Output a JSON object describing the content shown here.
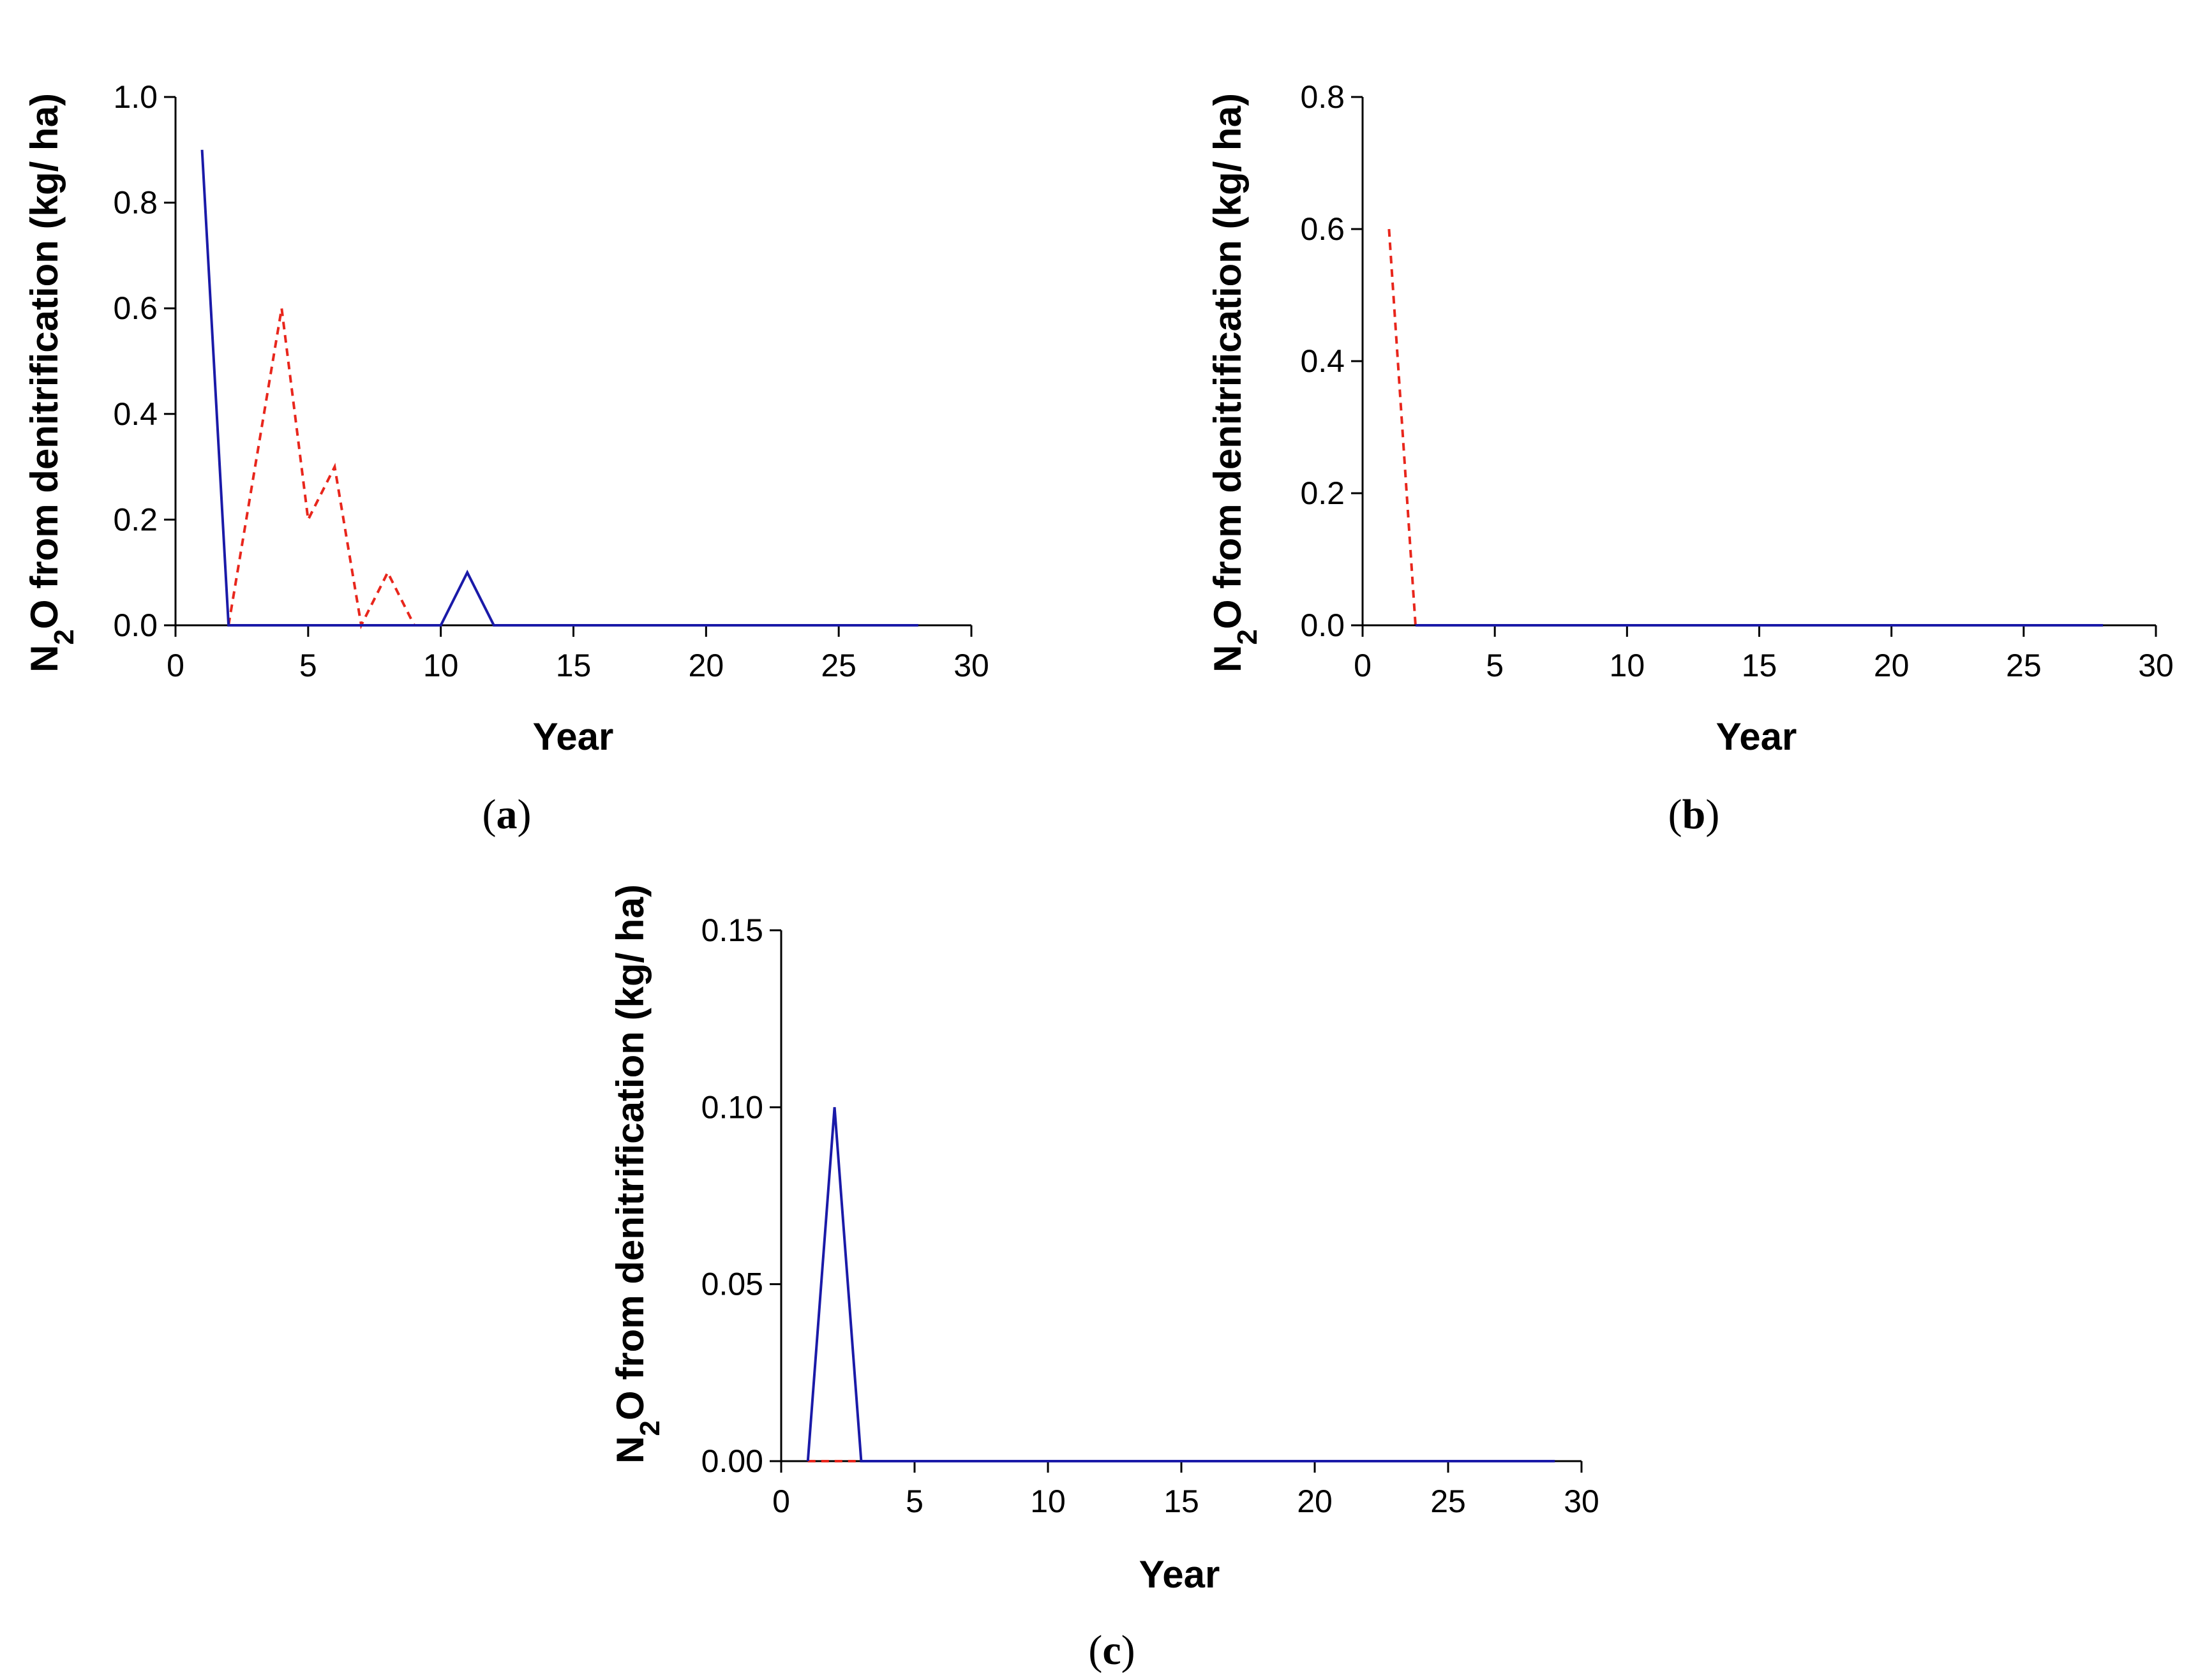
{
  "figure": {
    "series_colors": {
      "red_dashed": "#e8261c",
      "blue_solid": "#1a1aa8"
    }
  },
  "chart_data": [
    {
      "panel": "a",
      "panel_label": {
        "open": "(",
        "letter": "a",
        "close": ")"
      },
      "type": "line",
      "xlabel": "Year",
      "ylabel": {
        "prefix": "N",
        "sub": "2",
        "suffix": "O from denitrification (kg/ ha)"
      },
      "xlim": [
        0,
        30
      ],
      "ylim": [
        0,
        1.0
      ],
      "xticks": [
        0,
        5,
        10,
        15,
        20,
        25,
        30
      ],
      "yticks": [
        0,
        0.2,
        0.4,
        0.6,
        0.8,
        1.0
      ],
      "ytick_labels": [
        "0.0",
        "0.2",
        "0.4",
        "0.6",
        "0.8",
        "1.0"
      ],
      "series": [
        {
          "style": "dashed",
          "color": "#e8261c",
          "x": [
            2,
            3,
            4,
            5,
            6,
            7,
            8,
            9
          ],
          "y": [
            0,
            0.3,
            0.6,
            0.2,
            0.3,
            0,
            0.1,
            0
          ]
        },
        {
          "style": "solid",
          "color": "#1a1aa8",
          "x": [
            1,
            2,
            3,
            10,
            11,
            12,
            28
          ],
          "y": [
            0.9,
            0,
            0,
            0,
            0.1,
            0,
            0
          ]
        }
      ]
    },
    {
      "panel": "b",
      "panel_label": {
        "open": "(",
        "letter": "b",
        "close": ")"
      },
      "type": "line",
      "xlabel": "Year",
      "ylabel": {
        "prefix": "N",
        "sub": "2",
        "suffix": "O from denitrification (kg/ ha)"
      },
      "xlim": [
        0,
        30
      ],
      "ylim": [
        0,
        0.8
      ],
      "xticks": [
        0,
        5,
        10,
        15,
        20,
        25,
        30
      ],
      "yticks": [
        0,
        0.2,
        0.4,
        0.6,
        0.8
      ],
      "ytick_labels": [
        "0.0",
        "0.2",
        "0.4",
        "0.6",
        "0.8"
      ],
      "series": [
        {
          "style": "dashed",
          "color": "#e8261c",
          "x": [
            1,
            2
          ],
          "y": [
            0.6,
            0
          ]
        },
        {
          "style": "solid",
          "color": "#1a1aa8",
          "x": [
            2,
            28
          ],
          "y": [
            0,
            0
          ]
        }
      ]
    },
    {
      "panel": "c",
      "panel_label": {
        "open": "(",
        "letter": "c",
        "close": ")"
      },
      "type": "line",
      "xlabel": "Year",
      "ylabel": {
        "prefix": "N",
        "sub": "2",
        "suffix": "O from denitrification (kg/ ha)"
      },
      "xlim": [
        0,
        30
      ],
      "ylim": [
        0,
        0.15
      ],
      "xticks": [
        0,
        5,
        10,
        15,
        20,
        25,
        30
      ],
      "yticks": [
        0,
        0.05,
        0.1,
        0.15
      ],
      "ytick_labels": [
        "0.00",
        "0.05",
        "0.10",
        "0.15"
      ],
      "series": [
        {
          "style": "dashed",
          "color": "#e8261c",
          "x": [
            1,
            3
          ],
          "y": [
            0,
            0
          ]
        },
        {
          "style": "solid",
          "color": "#1a1aa8",
          "x": [
            1,
            2,
            3,
            29
          ],
          "y": [
            0,
            0.1,
            0,
            0
          ]
        }
      ]
    }
  ]
}
